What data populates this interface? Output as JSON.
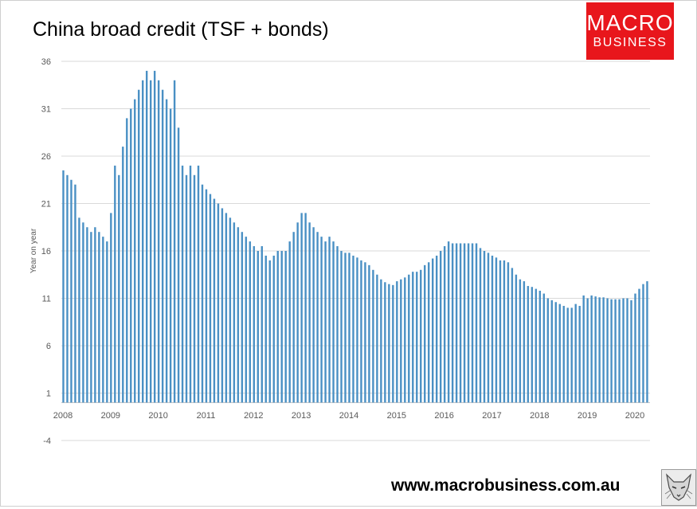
{
  "header": {
    "title": "China broad credit (TSF + bonds)"
  },
  "logo": {
    "line1": "MACRO",
    "line2": "BUSINESS",
    "background": "#e8161c"
  },
  "footer": {
    "url": "www.macrobusiness.com.au"
  },
  "icons": {
    "mascot": "fox-mascot-icon"
  },
  "chart_data": {
    "type": "bar",
    "title": "China broad credit (TSF + bonds)",
    "xlabel": "",
    "ylabel": "Year on year",
    "ylim": [
      -4,
      36
    ],
    "yticks": [
      36,
      31,
      26,
      21,
      16,
      11,
      6,
      1,
      -4
    ],
    "xtick_labels": [
      "2008",
      "2009",
      "2010",
      "2011",
      "2012",
      "2013",
      "2014",
      "2015",
      "2016",
      "2017",
      "2018",
      "2019",
      "2020"
    ],
    "x_start": "2008-01",
    "frequency": "monthly",
    "grid": true,
    "legend": "none",
    "bar_color": "#4a90c4",
    "values": [
      24.5,
      24.0,
      23.5,
      23.0,
      19.5,
      19.0,
      18.5,
      18.0,
      18.5,
      18.0,
      17.5,
      17.0,
      20.0,
      25.0,
      24.0,
      27.0,
      30.0,
      31.0,
      32.0,
      33.0,
      34.0,
      35.0,
      34.0,
      35.0,
      34.0,
      33.0,
      32.0,
      31.0,
      34.0,
      29.0,
      25.0,
      24.0,
      25.0,
      24.0,
      25.0,
      23.0,
      22.5,
      22.0,
      21.5,
      21.0,
      20.5,
      20.0,
      19.5,
      19.0,
      18.5,
      18.0,
      17.5,
      17.0,
      16.5,
      16.0,
      16.5,
      15.5,
      15.0,
      15.5,
      16.0,
      16.0,
      16.0,
      17.0,
      18.0,
      19.0,
      20.0,
      20.0,
      19.0,
      18.5,
      18.0,
      17.5,
      17.0,
      17.5,
      17.0,
      16.5,
      16.0,
      15.8,
      15.8,
      15.5,
      15.3,
      15.0,
      14.8,
      14.5,
      14.0,
      13.5,
      13.0,
      12.7,
      12.5,
      12.4,
      12.8,
      13.0,
      13.2,
      13.5,
      13.8,
      13.8,
      14.0,
      14.5,
      14.8,
      15.2,
      15.5,
      16.0,
      16.5,
      17.0,
      16.8,
      16.8,
      16.8,
      16.8,
      16.8,
      16.8,
      16.8,
      16.3,
      16.0,
      15.8,
      15.5,
      15.3,
      15.0,
      15.0,
      14.8,
      14.2,
      13.5,
      13.0,
      12.8,
      12.3,
      12.2,
      12.0,
      11.8,
      11.5,
      11.0,
      10.8,
      10.6,
      10.4,
      10.2,
      10.0,
      10.0,
      10.4,
      10.2,
      11.3,
      11.0,
      11.3,
      11.2,
      11.1,
      11.1,
      11.0,
      10.9,
      10.9,
      10.9,
      11.0,
      11.0,
      10.8,
      11.5,
      12.0,
      12.5,
      12.8
    ]
  }
}
